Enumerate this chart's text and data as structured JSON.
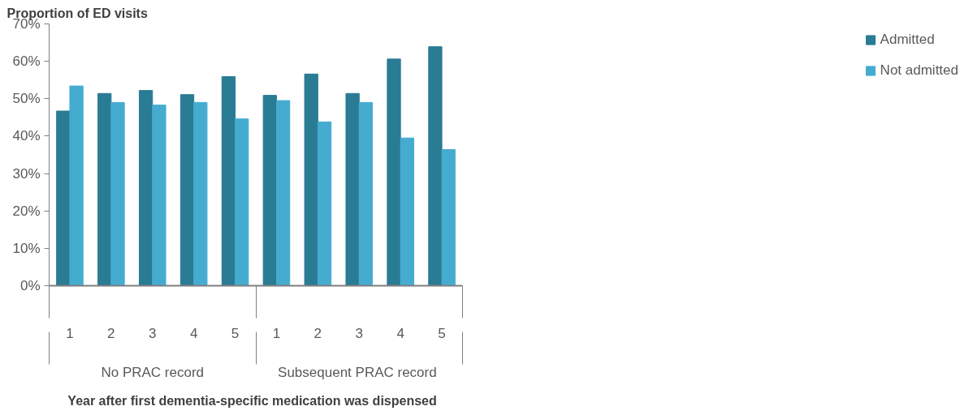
{
  "chart_data": {
    "type": "bar",
    "ylabel": "Proportion of ED visits",
    "xlabel": "Year after first dementia-specific  medication  was dispensed",
    "categories": [
      "1",
      "2",
      "3",
      "4",
      "5",
      "1",
      "2",
      "3",
      "4",
      "5"
    ],
    "annotations": [
      "No PRAC record",
      "Subsequent  PRAC record"
    ],
    "series": [
      {
        "name": "Admitted",
        "color": "#2a7b94",
        "values": [
          46.7,
          51.4,
          52.2,
          51.1,
          55.9,
          50.9,
          56.6,
          51.4,
          60.6,
          63.9
        ]
      },
      {
        "name": "Not admitted",
        "color": "#45acd0",
        "values": [
          53.4,
          49.0,
          48.3,
          49.0,
          44.6,
          49.5,
          43.8,
          49.0,
          39.5,
          36.4
        ]
      }
    ],
    "ylim": [
      0,
      70
    ],
    "yticks": [
      {
        "value": 0,
        "label": "0%"
      },
      {
        "value": 10,
        "label": "10%"
      },
      {
        "value": 20,
        "label": "20%"
      },
      {
        "value": 30,
        "label": "30%"
      },
      {
        "value": 40,
        "label": "40%"
      },
      {
        "value": 50,
        "label": "50%"
      },
      {
        "value": 60,
        "label": "60%"
      },
      {
        "value": 70,
        "label": "70%"
      }
    ],
    "grid": false,
    "legend": "right"
  }
}
